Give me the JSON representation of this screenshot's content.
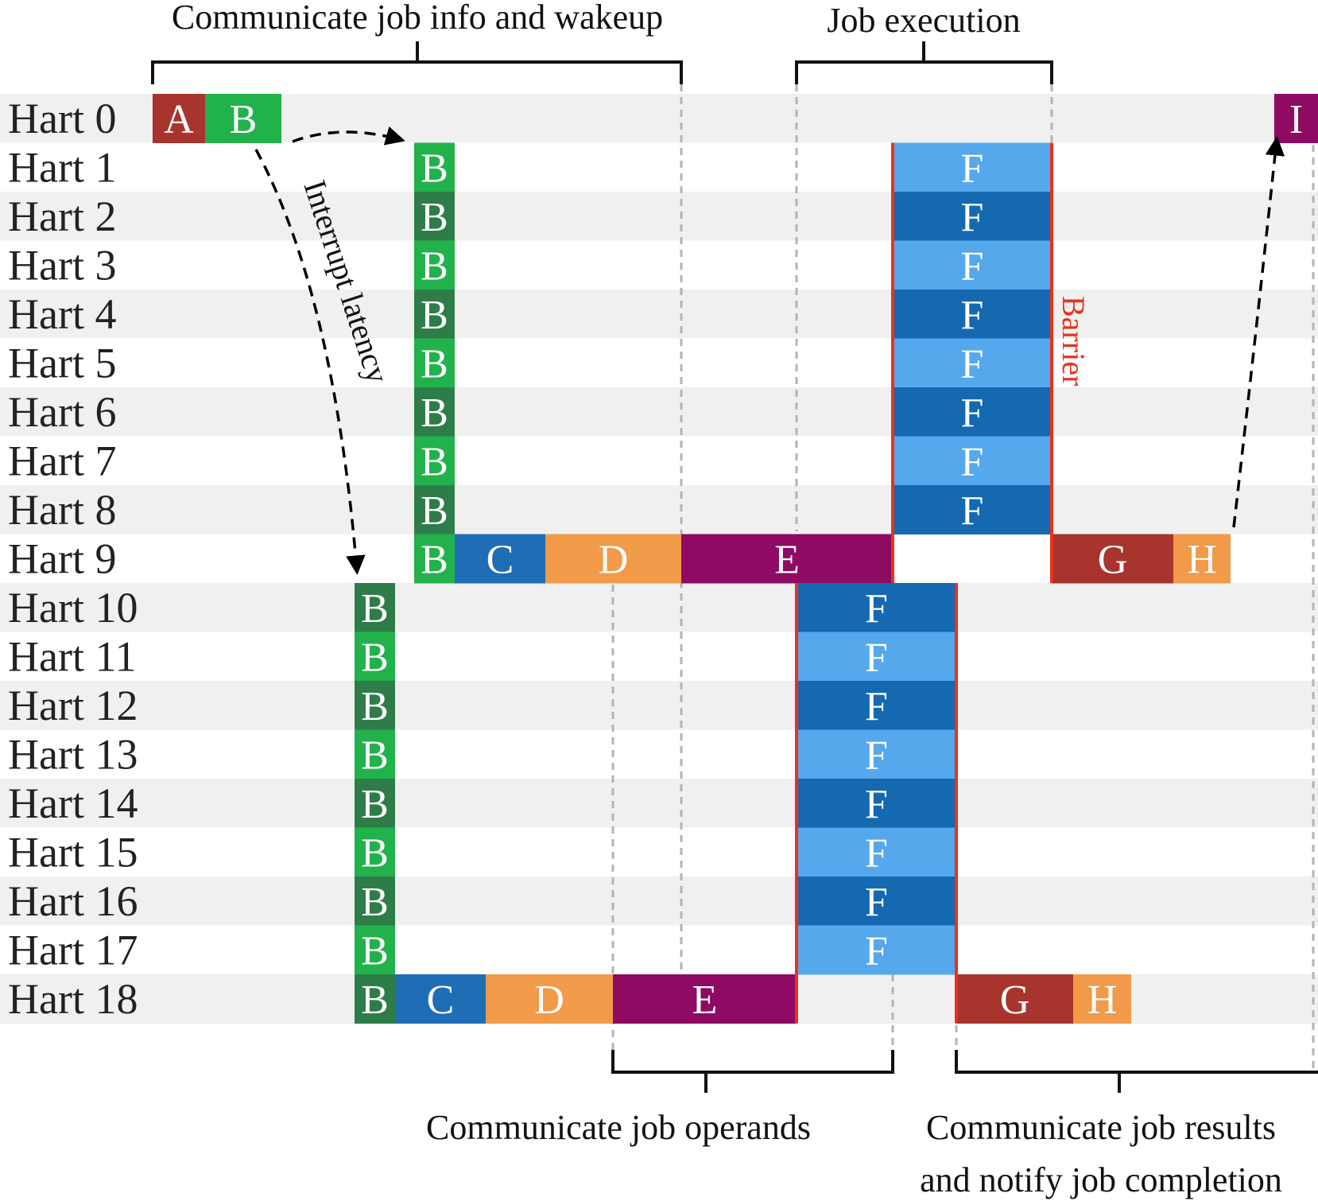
{
  "titles": {
    "top_left": "Communicate job info and wakeup",
    "top_right": "Job execution",
    "bottom_left": "Communicate job operands",
    "bottom_right_line1": "Communicate job results",
    "bottom_right_line2": "and notify job completion"
  },
  "annotations": {
    "interrupt": "Interrupt latency",
    "barrier": "Barrier"
  },
  "harts": [
    "Hart 0",
    "Hart 1",
    "Hart 2",
    "Hart 3",
    "Hart 4",
    "Hart 5",
    "Hart 6",
    "Hart 7",
    "Hart 8",
    "Hart 9",
    "Hart 10",
    "Hart 11",
    "Hart 12",
    "Hart 13",
    "Hart 14",
    "Hart 15",
    "Hart 16",
    "Hart 17",
    "Hart 18"
  ],
  "colors": {
    "A": "#a8342e",
    "B_light": "#22b24c",
    "B_dark": "#2e7d49",
    "C": "#1f6db5",
    "D": "#f09a4a",
    "E": "#8e0a63",
    "F_light": "#55a8ec",
    "F_dark": "#1469b0",
    "G": "#a8342e",
    "H": "#f09a4a",
    "I": "#8e0a63",
    "barrier": "#e8321e",
    "row_alt": "#f0f0f0",
    "bracket": "#111111",
    "guide": "#b3b3b3"
  },
  "blocks": [
    {
      "label": "A",
      "hart": 0,
      "color": "A"
    },
    {
      "label": "B",
      "hart": 0,
      "color": "B_light"
    },
    {
      "label": "I",
      "hart": 0,
      "color": "I"
    },
    {
      "label": "B",
      "hart": 1,
      "color": "B_light"
    },
    {
      "label": "B",
      "hart": 2,
      "color": "B_dark"
    },
    {
      "label": "B",
      "hart": 3,
      "color": "B_light"
    },
    {
      "label": "B",
      "hart": 4,
      "color": "B_dark"
    },
    {
      "label": "B",
      "hart": 5,
      "color": "B_light"
    },
    {
      "label": "B",
      "hart": 6,
      "color": "B_dark"
    },
    {
      "label": "B",
      "hart": 7,
      "color": "B_light"
    },
    {
      "label": "B",
      "hart": 8,
      "color": "B_dark"
    },
    {
      "label": "B",
      "hart": 9,
      "color": "B_light"
    },
    {
      "label": "C",
      "hart": 9,
      "color": "C"
    },
    {
      "label": "D",
      "hart": 9,
      "color": "D"
    },
    {
      "label": "E",
      "hart": 9,
      "color": "E"
    },
    {
      "label": "G",
      "hart": 9,
      "color": "G"
    },
    {
      "label": "H",
      "hart": 9,
      "color": "H"
    },
    {
      "label": "F",
      "hart": 1,
      "color": "F_light"
    },
    {
      "label": "F",
      "hart": 2,
      "color": "F_dark"
    },
    {
      "label": "F",
      "hart": 3,
      "color": "F_light"
    },
    {
      "label": "F",
      "hart": 4,
      "color": "F_dark"
    },
    {
      "label": "F",
      "hart": 5,
      "color": "F_light"
    },
    {
      "label": "F",
      "hart": 6,
      "color": "F_dark"
    },
    {
      "label": "F",
      "hart": 7,
      "color": "F_light"
    },
    {
      "label": "F",
      "hart": 8,
      "color": "F_dark"
    },
    {
      "label": "B",
      "hart": 10,
      "color": "B_dark"
    },
    {
      "label": "B",
      "hart": 11,
      "color": "B_light"
    },
    {
      "label": "B",
      "hart": 12,
      "color": "B_dark"
    },
    {
      "label": "B",
      "hart": 13,
      "color": "B_light"
    },
    {
      "label": "B",
      "hart": 14,
      "color": "B_dark"
    },
    {
      "label": "B",
      "hart": 15,
      "color": "B_light"
    },
    {
      "label": "B",
      "hart": 16,
      "color": "B_dark"
    },
    {
      "label": "B",
      "hart": 17,
      "color": "B_light"
    },
    {
      "label": "B",
      "hart": 18,
      "color": "B_dark"
    },
    {
      "label": "C",
      "hart": 18,
      "color": "C"
    },
    {
      "label": "D",
      "hart": 18,
      "color": "D"
    },
    {
      "label": "E",
      "hart": 18,
      "color": "E"
    },
    {
      "label": "G",
      "hart": 18,
      "color": "G"
    },
    {
      "label": "H",
      "hart": 18,
      "color": "H"
    },
    {
      "label": "F",
      "hart": 10,
      "color": "F_dark"
    },
    {
      "label": "F",
      "hart": 11,
      "color": "F_light"
    },
    {
      "label": "F",
      "hart": 12,
      "color": "F_dark"
    },
    {
      "label": "F",
      "hart": 13,
      "color": "F_light"
    },
    {
      "label": "F",
      "hart": 14,
      "color": "F_dark"
    },
    {
      "label": "F",
      "hart": 15,
      "color": "F_light"
    },
    {
      "label": "F",
      "hart": 16,
      "color": "F_dark"
    },
    {
      "label": "F",
      "hart": 17,
      "color": "F_light"
    }
  ]
}
